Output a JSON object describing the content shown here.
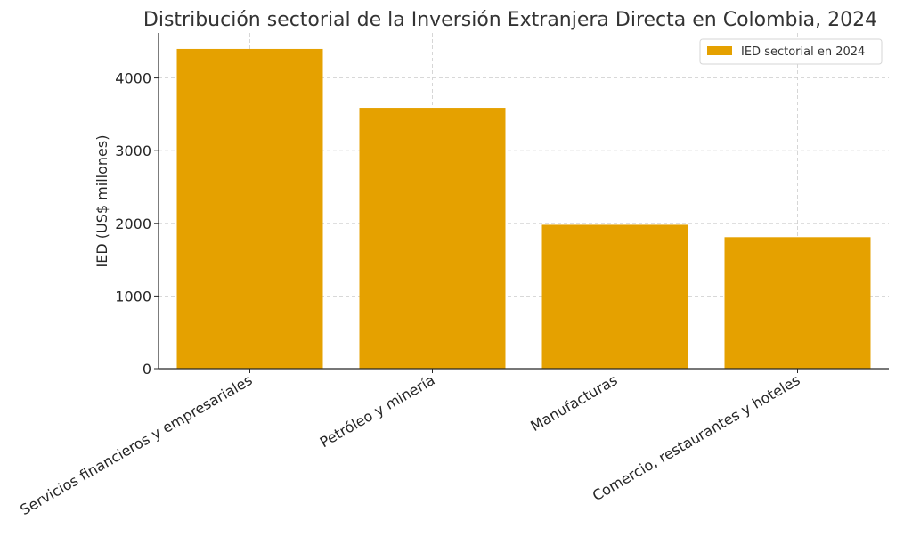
{
  "chart_data": {
    "type": "bar",
    "title": "Distribución sectorial de la Inversión Extranjera Directa en Colombia, 2024",
    "xlabel": "",
    "ylabel": "IED (US$ millones)",
    "categories": [
      "Servicios financieros y empresariales",
      "Petróleo y minería",
      "Manufacturas",
      "Comercio, restaurantes y hoteles"
    ],
    "series": [
      {
        "name": "IED sectorial en 2024",
        "values": [
          4400,
          3590,
          1980,
          1810
        ],
        "color": "#E5A100"
      }
    ],
    "ylim": [
      0,
      4620
    ],
    "yticks": [
      0,
      1000,
      2000,
      3000,
      4000
    ],
    "grid": true,
    "legend_position": "top-right"
  }
}
